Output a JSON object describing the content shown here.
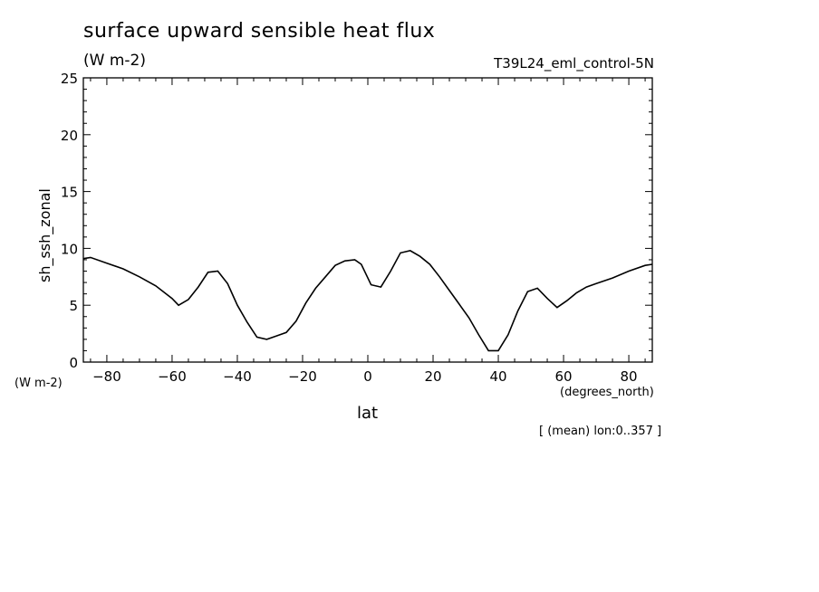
{
  "chart_data": {
    "type": "line",
    "title": "surface upward sensible heat flux",
    "units": "(W m-2)",
    "run_label": "T39L24_eml_control-5N",
    "ylabel": "sh_ssh_zonal",
    "y_units": "(W m-2)",
    "xlabel": "lat",
    "x_units": "(degrees_north)",
    "note": "[ (mean) lon:0..357 ]",
    "xlim": [
      -87.2,
      87.2
    ],
    "ylim": [
      0,
      25
    ],
    "x_ticks": [
      -80,
      -60,
      -40,
      -20,
      0,
      20,
      40,
      60,
      80
    ],
    "y_ticks": [
      0,
      5,
      10,
      15,
      20,
      25
    ],
    "grid": false,
    "series": [
      {
        "x": [
          -87.2,
          -85,
          -80,
          -75,
          -70,
          -65,
          -60,
          -58,
          -55,
          -52,
          -49,
          -46,
          -43,
          -40,
          -37,
          -34,
          -31,
          -28,
          -25,
          -22,
          -19,
          -16,
          -13,
          -10,
          -7,
          -4,
          -2,
          1,
          4,
          7,
          10,
          13,
          16,
          19,
          22,
          25,
          28,
          31,
          34,
          37,
          40,
          43,
          46,
          49,
          52,
          55,
          58,
          61,
          64,
          67,
          70,
          75,
          80,
          85,
          87.2
        ],
        "y": [
          9.1,
          9.2,
          8.7,
          8.2,
          7.5,
          6.7,
          5.6,
          5.0,
          5.5,
          6.6,
          7.9,
          8.0,
          6.9,
          5.0,
          3.5,
          2.2,
          2.0,
          2.3,
          2.6,
          3.6,
          5.2,
          6.5,
          7.5,
          8.5,
          8.9,
          9.0,
          8.6,
          6.8,
          6.6,
          8.0,
          9.6,
          9.8,
          9.3,
          8.6,
          7.5,
          6.3,
          5.1,
          3.9,
          2.4,
          1.0,
          1.0,
          2.4,
          4.5,
          6.2,
          6.5,
          5.6,
          4.8,
          5.4,
          6.1,
          6.6,
          6.9,
          7.4,
          8.0,
          8.5,
          8.6
        ]
      }
    ]
  }
}
